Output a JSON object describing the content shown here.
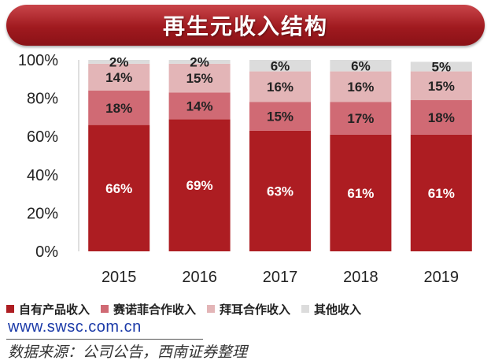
{
  "title": "再生元收入结构",
  "website": "www.swsc.com.cn",
  "source": "数据来源：公司公告，西南证券整理",
  "colors": {
    "title_bar": "#a01a1f",
    "series": [
      "#ad1d22",
      "#d06a74",
      "#e3b5b7",
      "#dcdcdc"
    ]
  },
  "chart_data": {
    "type": "bar",
    "stacked": true,
    "categories": [
      "2015",
      "2016",
      "2017",
      "2018",
      "2019"
    ],
    "ylim": [
      0,
      100
    ],
    "y_ticks": [
      "0%",
      "20%",
      "40%",
      "60%",
      "80%",
      "100%"
    ],
    "series": [
      {
        "name": "自有产品收入",
        "values": [
          66,
          69,
          63,
          61,
          61
        ],
        "labels": [
          "66%",
          "69%",
          "63%",
          "61%",
          "61%"
        ]
      },
      {
        "name": "赛诺菲合作收入",
        "values": [
          18,
          14,
          15,
          17,
          18
        ],
        "labels": [
          "18%",
          "14%",
          "15%",
          "17%",
          "18%"
        ]
      },
      {
        "name": "拜耳合作收入",
        "values": [
          14,
          15,
          16,
          16,
          15
        ],
        "labels": [
          "14%",
          "15%",
          "16%",
          "16%",
          "15%"
        ]
      },
      {
        "name": "其他收入",
        "values": [
          2,
          2,
          6,
          6,
          5
        ],
        "labels": [
          "2%",
          "2%",
          "6%",
          "6%",
          "5%"
        ]
      }
    ],
    "legend_position": "bottom"
  }
}
